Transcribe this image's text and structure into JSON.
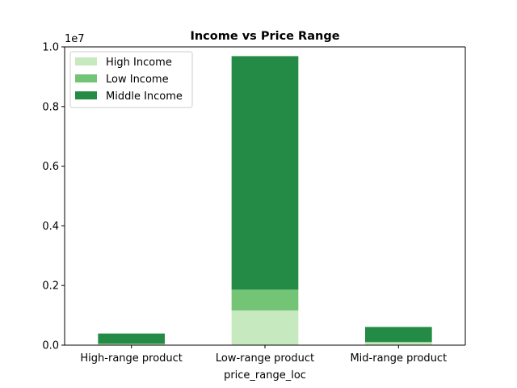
{
  "chart_data": {
    "type": "bar",
    "stacked": true,
    "title": "Income vs Price Range",
    "xlabel": "price_range_loc",
    "ylabel": "",
    "y_offset_label": "1e7",
    "categories": [
      "High-range product",
      "Low-range product",
      "Mid-range product"
    ],
    "series": [
      {
        "name": "High Income",
        "color": "#c7e9c0",
        "values": [
          30000,
          1160000,
          90000
        ]
      },
      {
        "name": "Low Income",
        "color": "#74c476",
        "values": [
          20000,
          700000,
          20000
        ]
      },
      {
        "name": "Middle Income",
        "color": "#238b45",
        "values": [
          340000,
          7830000,
          500000
        ]
      }
    ],
    "ylim": [
      0,
      10000000
    ],
    "yticks": [
      0,
      2000000,
      4000000,
      6000000,
      8000000,
      10000000
    ],
    "ytick_labels": [
      "0.0",
      "0.2",
      "0.4",
      "0.6",
      "0.8",
      "1.0"
    ],
    "grid": false,
    "legend_position": "upper-left"
  }
}
